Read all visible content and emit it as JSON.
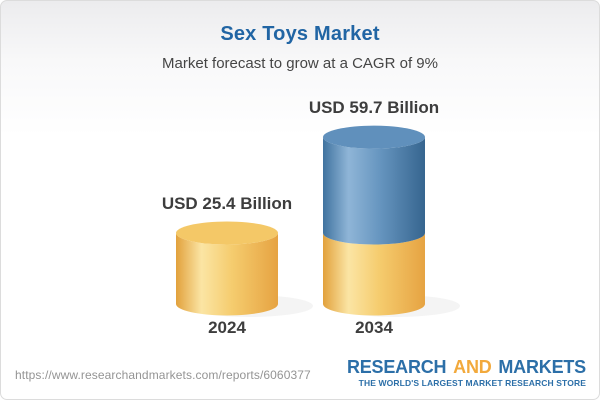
{
  "header": {
    "title": "Sex Toys Market",
    "subtitle": "Market forecast to grow at a CAGR of 9%"
  },
  "chart_data": {
    "type": "bar",
    "variant": "3d-cylinder-stacked",
    "categories": [
      "2024",
      "2034"
    ],
    "values": [
      25.4,
      59.7
    ],
    "value_labels": [
      "USD 25.4 Billion",
      "USD 59.7 Billion"
    ],
    "unit": "USD Billion",
    "cagr_pct": 9,
    "ylim": [
      0,
      65
    ],
    "grid": false,
    "legend": "none",
    "colors": {
      "base_segment": "#F2C563",
      "growth_segment": "#5F91BD"
    },
    "notes": "2034 cylinder shows the 2024 base value in yellow with the growth portion stacked in blue"
  },
  "footer": {
    "url": "https://www.researchandmarkets.com/reports/6060377",
    "logo": {
      "part1": "RESEARCH",
      "part2": "AND",
      "part3": "MARKETS",
      "tagline": "THE WORLD'S LARGEST MARKET RESEARCH STORE",
      "blue": "#2C6FA8",
      "orange": "#F2A93C"
    }
  }
}
